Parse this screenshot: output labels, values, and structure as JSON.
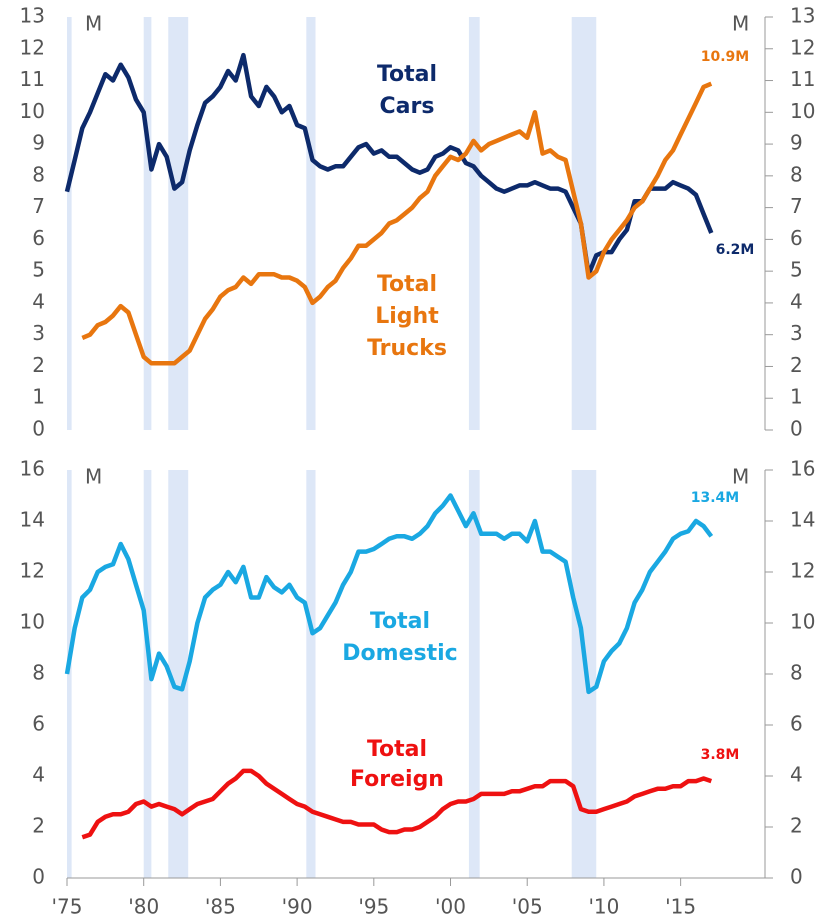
{
  "chart_data": [
    {
      "type": "line",
      "unit": "M",
      "x": [
        1975,
        1975.5,
        1976,
        1976.5,
        1977,
        1977.5,
        1978,
        1978.5,
        1979,
        1979.5,
        1980,
        1980.5,
        1981,
        1981.5,
        1982,
        1982.5,
        1983,
        1983.5,
        1984,
        1984.5,
        1985,
        1985.5,
        1986,
        1986.5,
        1987,
        1987.5,
        1988,
        1988.5,
        1989,
        1989.5,
        1990,
        1990.5,
        1991,
        1991.5,
        1992,
        1992.5,
        1993,
        1993.5,
        1994,
        1994.5,
        1995,
        1995.5,
        1996,
        1996.5,
        1997,
        1997.5,
        1998,
        1998.5,
        1999,
        1999.5,
        2000,
        2000.5,
        2001,
        2001.5,
        2002,
        2002.5,
        2003,
        2003.5,
        2004,
        2004.5,
        2005,
        2005.5,
        2006,
        2006.5,
        2007,
        2007.5,
        2008,
        2008.5,
        2009,
        2009.5,
        2010,
        2010.5,
        2011,
        2011.5,
        2012,
        2012.5,
        2013,
        2013.5,
        2014,
        2014.5,
        2015,
        2015.5,
        2016,
        2016.5,
        2017
      ],
      "xlim": [
        1975,
        2020.5
      ],
      "ylim": [
        0,
        13
      ],
      "yticks": [
        0,
        1,
        2,
        3,
        4,
        5,
        6,
        7,
        8,
        9,
        10,
        11,
        12,
        13
      ],
      "y2lim": [
        0,
        13
      ],
      "y2ticks": [
        0,
        1,
        2,
        3,
        4,
        5,
        6,
        7,
        8,
        9,
        10,
        11,
        12,
        13
      ],
      "recessions": [
        [
          1975,
          1975.3
        ],
        [
          1980,
          1980.5
        ],
        [
          1981.6,
          1982.9
        ],
        [
          1990.6,
          1991.2
        ],
        [
          2001.2,
          2001.9
        ],
        [
          2007.9,
          2009.5
        ]
      ],
      "series": [
        {
          "name": "Total Cars",
          "color": "#0d2a6b",
          "last_label": "6.2M",
          "values": [
            7.5,
            8.5,
            9.5,
            10.0,
            10.6,
            11.2,
            11.0,
            11.5,
            11.1,
            10.4,
            10.0,
            8.2,
            9.0,
            8.6,
            7.6,
            7.8,
            8.8,
            9.6,
            10.3,
            10.5,
            10.8,
            11.3,
            11.0,
            11.8,
            10.5,
            10.2,
            10.8,
            10.5,
            10.0,
            10.2,
            9.6,
            9.5,
            8.5,
            8.3,
            8.2,
            8.3,
            8.3,
            8.6,
            8.9,
            9.0,
            8.7,
            8.8,
            8.6,
            8.6,
            8.4,
            8.2,
            8.1,
            8.2,
            8.6,
            8.7,
            8.9,
            8.8,
            8.4,
            8.3,
            8.0,
            7.8,
            7.6,
            7.5,
            7.6,
            7.7,
            7.7,
            7.8,
            7.7,
            7.6,
            7.6,
            7.5,
            7.0,
            6.5,
            4.9,
            5.5,
            5.6,
            5.6,
            6.0,
            6.3,
            7.2,
            7.2,
            7.6,
            7.6,
            7.6,
            7.8,
            7.7,
            7.6,
            7.4,
            6.8,
            6.2
          ]
        },
        {
          "name": "Total Light Trucks",
          "color": "#e8760f",
          "last_label": "10.9M",
          "values": [
            null,
            null,
            2.9,
            3.0,
            3.3,
            3.4,
            3.6,
            3.9,
            3.7,
            3.0,
            2.3,
            2.1,
            2.1,
            2.1,
            2.1,
            2.3,
            2.5,
            3.0,
            3.5,
            3.8,
            4.2,
            4.4,
            4.5,
            4.8,
            4.6,
            4.9,
            4.9,
            4.9,
            4.8,
            4.8,
            4.7,
            4.5,
            4.0,
            4.2,
            4.5,
            4.7,
            5.1,
            5.4,
            5.8,
            5.8,
            6.0,
            6.2,
            6.5,
            6.6,
            6.8,
            7.0,
            7.3,
            7.5,
            8.0,
            8.3,
            8.6,
            8.5,
            8.7,
            9.1,
            8.8,
            9.0,
            9.1,
            9.2,
            9.3,
            9.4,
            9.2,
            10.0,
            8.7,
            8.8,
            8.6,
            8.5,
            7.5,
            6.5,
            4.8,
            5.0,
            5.6,
            6.0,
            6.3,
            6.6,
            7.0,
            7.2,
            7.6,
            8.0,
            8.5,
            8.8,
            9.3,
            9.8,
            10.3,
            10.8,
            10.9
          ]
        }
      ]
    },
    {
      "type": "line",
      "unit": "M",
      "x": [
        1975,
        1975.5,
        1976,
        1976.5,
        1977,
        1977.5,
        1978,
        1978.5,
        1979,
        1979.5,
        1980,
        1980.5,
        1981,
        1981.5,
        1982,
        1982.5,
        1983,
        1983.5,
        1984,
        1984.5,
        1985,
        1985.5,
        1986,
        1986.5,
        1987,
        1987.5,
        1988,
        1988.5,
        1989,
        1989.5,
        1990,
        1990.5,
        1991,
        1991.5,
        1992,
        1992.5,
        1993,
        1993.5,
        1994,
        1994.5,
        1995,
        1995.5,
        1996,
        1996.5,
        1997,
        1997.5,
        1998,
        1998.5,
        1999,
        1999.5,
        2000,
        2000.5,
        2001,
        2001.5,
        2002,
        2002.5,
        2003,
        2003.5,
        2004,
        2004.5,
        2005,
        2005.5,
        2006,
        2006.5,
        2007,
        2007.5,
        2008,
        2008.5,
        2009,
        2009.5,
        2010,
        2010.5,
        2011,
        2011.5,
        2012,
        2012.5,
        2013,
        2013.5,
        2014,
        2014.5,
        2015,
        2015.5,
        2016,
        2016.5,
        2017
      ],
      "xlim": [
        1975,
        2020.5
      ],
      "xticks": [
        {
          "value": 1975,
          "label": "'75"
        },
        {
          "value": 1980,
          "label": "'80"
        },
        {
          "value": 1985,
          "label": "'85"
        },
        {
          "value": 1990,
          "label": "'90"
        },
        {
          "value": 1995,
          "label": "'95"
        },
        {
          "value": 2000,
          "label": "'00"
        },
        {
          "value": 2005,
          "label": "'05"
        },
        {
          "value": 2010,
          "label": "'10"
        },
        {
          "value": 2015,
          "label": "'15"
        }
      ],
      "ylim": [
        0,
        16
      ],
      "yticks": [
        0,
        2,
        4,
        6,
        8,
        10,
        12,
        14,
        16
      ],
      "y2lim": [
        0,
        16
      ],
      "y2ticks": [
        0,
        2,
        4,
        6,
        8,
        10,
        12,
        14,
        16
      ],
      "recessions": [
        [
          1975,
          1975.3
        ],
        [
          1980,
          1980.5
        ],
        [
          1981.6,
          1982.9
        ],
        [
          1990.6,
          1991.2
        ],
        [
          2001.2,
          2001.9
        ],
        [
          2007.9,
          2009.5
        ]
      ],
      "series": [
        {
          "name": "Total Domestic",
          "color": "#1aa8e2",
          "last_label": "13.4M",
          "values": [
            8.0,
            9.8,
            11.0,
            11.3,
            12.0,
            12.2,
            12.3,
            13.1,
            12.5,
            11.5,
            10.5,
            7.8,
            8.8,
            8.3,
            7.5,
            7.4,
            8.5,
            10.0,
            11.0,
            11.3,
            11.5,
            12.0,
            11.6,
            12.2,
            11.0,
            11.0,
            11.8,
            11.4,
            11.2,
            11.5,
            11.0,
            10.8,
            9.6,
            9.8,
            10.3,
            10.8,
            11.5,
            12.0,
            12.8,
            12.8,
            12.9,
            13.1,
            13.3,
            13.4,
            13.4,
            13.3,
            13.5,
            13.8,
            14.3,
            14.6,
            15.0,
            14.4,
            13.8,
            14.3,
            13.5,
            13.5,
            13.5,
            13.3,
            13.5,
            13.5,
            13.2,
            14.0,
            12.8,
            12.8,
            12.6,
            12.4,
            11.0,
            9.8,
            7.3,
            7.5,
            8.5,
            8.9,
            9.2,
            9.8,
            10.8,
            11.3,
            12.0,
            12.4,
            12.8,
            13.3,
            13.5,
            13.6,
            14.0,
            13.8,
            13.4
          ]
        },
        {
          "name": "Total Foreign",
          "color": "#ee1111",
          "last_label": "3.8M",
          "values": [
            null,
            null,
            1.6,
            1.7,
            2.2,
            2.4,
            2.5,
            2.5,
            2.6,
            2.9,
            3.0,
            2.8,
            2.9,
            2.8,
            2.7,
            2.5,
            2.7,
            2.9,
            3.0,
            3.1,
            3.4,
            3.7,
            3.9,
            4.2,
            4.2,
            4.0,
            3.7,
            3.5,
            3.3,
            3.1,
            2.9,
            2.8,
            2.6,
            2.5,
            2.4,
            2.3,
            2.2,
            2.2,
            2.1,
            2.1,
            2.1,
            1.9,
            1.8,
            1.8,
            1.9,
            1.9,
            2.0,
            2.2,
            2.4,
            2.7,
            2.9,
            3.0,
            3.0,
            3.1,
            3.3,
            3.3,
            3.3,
            3.3,
            3.4,
            3.4,
            3.5,
            3.6,
            3.6,
            3.8,
            3.8,
            3.8,
            3.6,
            2.7,
            2.6,
            2.6,
            2.7,
            2.8,
            2.9,
            3.0,
            3.2,
            3.3,
            3.4,
            3.5,
            3.5,
            3.6,
            3.6,
            3.8,
            3.8,
            3.9,
            3.8
          ]
        }
      ]
    }
  ]
}
